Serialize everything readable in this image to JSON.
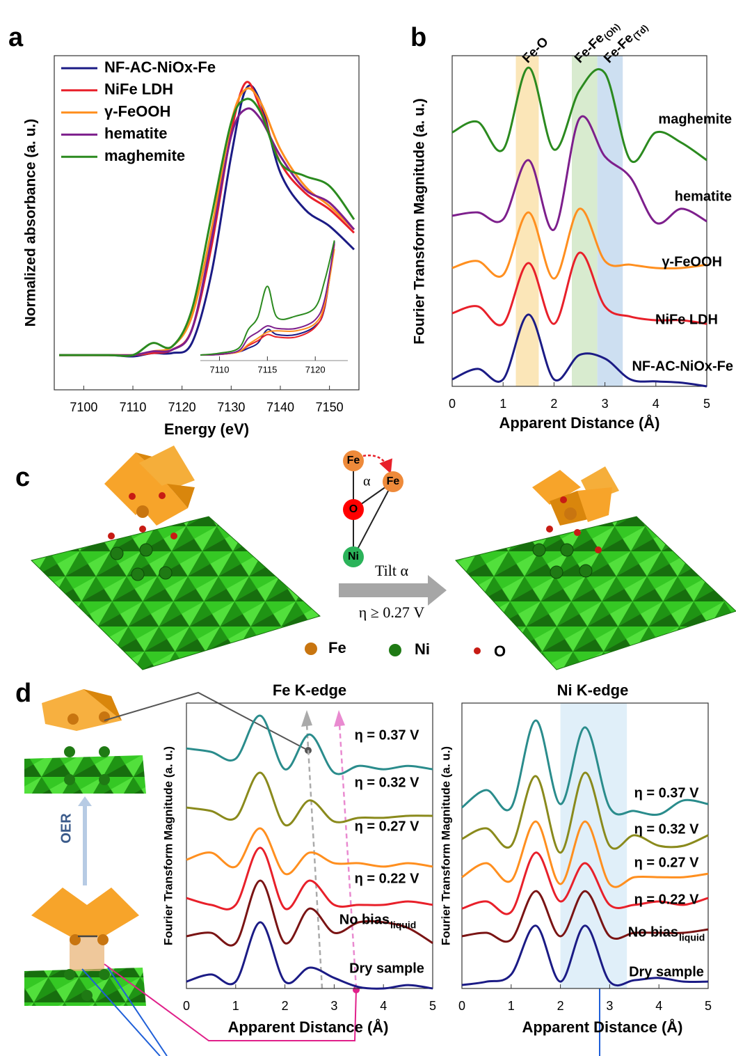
{
  "panel_labels": [
    "a",
    "b",
    "c",
    "d"
  ],
  "chart_data": [
    {
      "type": "line",
      "legend": true,
      "x_label": "Energy (eV)",
      "y_label": "Normalized absorbance (a. u.)",
      "x": [
        7095,
        7105,
        7110,
        7114,
        7118,
        7122,
        7126,
        7130,
        7133,
        7136,
        7140,
        7145,
        7150,
        7155
      ],
      "xlim": [
        7094,
        7156
      ],
      "xticks": [
        7100,
        7110,
        7120,
        7130,
        7140,
        7150
      ],
      "ylim": [
        0,
        10
      ],
      "series": [
        {
          "name": "NF-AC-NiOx-Fe",
          "color": "#1b1b85",
          "values": [
            1.04,
            1.04,
            1.0,
            1.1,
            1.1,
            1.4,
            3.5,
            7.0,
            9.0,
            8.6,
            6.5,
            5.4,
            4.9,
            4.2
          ]
        },
        {
          "name": "NiFe LDH",
          "color": "#e8202a",
          "values": [
            1.04,
            1.04,
            1.04,
            1.1,
            1.2,
            1.8,
            4.3,
            7.7,
            9.2,
            8.4,
            6.8,
            5.9,
            5.4,
            4.7
          ]
        },
        {
          "name": "γ-FeOOH",
          "color": "#ff8f1f",
          "values": [
            1.04,
            1.04,
            1.04,
            1.15,
            1.3,
            2.2,
            4.8,
            8.0,
            9.0,
            8.6,
            7.2,
            6.1,
            5.5,
            4.8
          ]
        },
        {
          "name": "hematite",
          "color": "#7d1f8c",
          "values": [
            1.04,
            1.04,
            1.04,
            1.15,
            1.2,
            1.8,
            4.5,
            7.6,
            8.4,
            8.1,
            7.0,
            6.0,
            5.6,
            4.8
          ]
        },
        {
          "name": "maghemite",
          "color": "#2b8a1f",
          "values": [
            1.04,
            1.04,
            1.04,
            1.4,
            1.3,
            2.4,
            5.2,
            8.0,
            8.7,
            8.3,
            6.8,
            6.4,
            6.1,
            5.1
          ]
        }
      ]
    },
    {
      "type": "line",
      "x": [
        7108,
        7110,
        7112,
        7113,
        7114,
        7115,
        7116,
        7118,
        7120,
        7121,
        7122
      ],
      "xlim": [
        7108,
        7123.4
      ],
      "xticks": [
        7110,
        7115,
        7120
      ],
      "ylim": [
        0,
        10
      ],
      "series": [
        {
          "color": "#1b1b85",
          "values": [
            0.45,
            0.5,
            0.7,
            1.0,
            1.4,
            2.5,
            2.1,
            2.1,
            2.8,
            4.3,
            9.6
          ]
        },
        {
          "color": "#e8202a",
          "values": [
            0.45,
            0.5,
            0.7,
            1.2,
            1.6,
            2.1,
            1.9,
            1.9,
            2.7,
            4.4,
            9.4
          ]
        },
        {
          "color": "#ff8f1f",
          "values": [
            0.45,
            0.5,
            0.7,
            1.3,
            1.8,
            2.3,
            2.4,
            2.4,
            3.0,
            4.6,
            9.0
          ]
        },
        {
          "color": "#7d1f8c",
          "values": [
            0.45,
            0.5,
            0.8,
            1.8,
            2.3,
            2.8,
            2.6,
            2.6,
            3.3,
            5.0,
            9.5
          ]
        },
        {
          "color": "#2b8a1f",
          "values": [
            0.45,
            0.6,
            1.0,
            2.5,
            3.5,
            6.0,
            3.5,
            3.6,
            4.3,
            6.5,
            9.7
          ]
        }
      ]
    },
    {
      "type": "line",
      "x_label": "Apparent Distance (Å)",
      "y_label": "Fourier Transform Magnitude (a. u.)",
      "x": [
        0,
        0.5,
        1,
        1.5,
        2,
        2.5,
        3,
        3.5,
        4,
        4.5,
        5
      ],
      "xlim": [
        0,
        5
      ],
      "xticks": [
        0,
        1,
        2,
        3,
        4,
        5
      ],
      "ylim": [
        0,
        10
      ],
      "bands": [
        {
          "label": "Fe-O",
          "range": [
            1.25,
            1.7
          ],
          "color": "#fbe6b8"
        },
        {
          "label": "Fe-Fe",
          "label_sub": "(Oh)",
          "range": [
            2.35,
            2.85
          ],
          "color": "#d8ebcf"
        },
        {
          "label": "Fe-Fe",
          "label_sub": "(Td)",
          "range": [
            2.85,
            3.35
          ],
          "color": "#cddff1"
        }
      ],
      "series": [
        {
          "name": "maghemite",
          "color": "#2b8a1f",
          "values": [
            7.68,
            8.0,
            7.16,
            9.64,
            7.16,
            8.95,
            9.47,
            6.84,
            7.68,
            7.37,
            6.84
          ]
        },
        {
          "name": "hematite",
          "color": "#7d1f8c",
          "values": [
            5.16,
            5.26,
            5.05,
            6.84,
            4.74,
            8.1,
            6.95,
            6.32,
            4.95,
            5.37,
            4.99
          ]
        },
        {
          "name": "γ-FeOOH",
          "color": "#ff8f1f",
          "values": [
            3.58,
            3.79,
            3.37,
            5.26,
            3.26,
            5.37,
            3.79,
            3.68,
            3.58,
            3.58,
            3.68
          ]
        },
        {
          "name": "NiFe LDH",
          "color": "#e8202a",
          "values": [
            2.21,
            2.42,
            1.89,
            3.73,
            1.89,
            4.04,
            2.42,
            2.11,
            2.0,
            2.0,
            1.89
          ]
        },
        {
          "name": "NF-AC-NiOx-Fe",
          "color": "#1b1b85",
          "values": [
            0.21,
            0.53,
            0.21,
            2.17,
            0.21,
            0.95,
            0.84,
            0.21,
            0.15,
            0.11,
            0.0
          ]
        }
      ]
    },
    {
      "type": "line",
      "title": "Fe K-edge",
      "x_label": "Apparent Distance (Å)",
      "y_label": "Fourier Transform Magnitude (a. u.)",
      "x": [
        0,
        0.5,
        1,
        1.5,
        2,
        2.5,
        3,
        3.5,
        4,
        4.5,
        5
      ],
      "xlim": [
        0,
        5
      ],
      "xticks": [
        0,
        1,
        2,
        3,
        4,
        5
      ],
      "ylim": [
        0,
        10
      ],
      "series": [
        {
          "name": "η = 0.37 V",
          "color": "#2a8c8c",
          "values": [
            8.41,
            8.29,
            8.05,
            9.56,
            7.68,
            8.9,
            7.56,
            7.8,
            7.68,
            7.8,
            7.68
          ]
        },
        {
          "name": "η = 0.32 V",
          "color": "#8a8a1c",
          "values": [
            6.34,
            6.22,
            5.98,
            7.56,
            5.73,
            6.59,
            5.85,
            5.98,
            5.98,
            6.05,
            6.05
          ]
        },
        {
          "name": "η = 0.27 V",
          "color": "#ff8f1f",
          "values": [
            4.51,
            4.76,
            4.27,
            5.61,
            4.02,
            4.76,
            4.39,
            4.39,
            4.27,
            4.39,
            4.27
          ]
        },
        {
          "name": "η = 0.22 V",
          "color": "#e8202a",
          "values": [
            3.17,
            2.93,
            2.93,
            4.93,
            2.8,
            3.78,
            2.93,
            2.93,
            2.93,
            3.05,
            2.93
          ]
        },
        {
          "name": "No bias",
          "name_sub": "liquid",
          "color": "#7a1414",
          "values": [
            1.83,
            1.95,
            1.59,
            3.78,
            1.59,
            2.8,
            1.95,
            2.32,
            2.32,
            2.12,
            1.59
          ]
        },
        {
          "name": "Dry sample",
          "color": "#1b1b85",
          "values": [
            0.24,
            0.49,
            0.24,
            2.32,
            0.24,
            0.73,
            0.37,
            0.05,
            0,
            0.12,
            0
          ]
        }
      ]
    },
    {
      "type": "line",
      "title": "Ni K-edge",
      "x_label": "Apparent Distance (Å)",
      "y_label": "Fourier Transform Magnitude (a. u.)",
      "x": [
        0,
        0.5,
        1,
        1.5,
        2,
        2.5,
        3,
        3.5,
        4,
        4.5,
        5
      ],
      "xlim": [
        0,
        5
      ],
      "xticks": [
        0,
        1,
        2,
        3,
        4,
        5
      ],
      "ylim": [
        0,
        10
      ],
      "bands": [
        {
          "range": [
            2.0,
            3.35
          ],
          "color": "#e0eff9"
        }
      ],
      "series": [
        {
          "name": "η = 0.37 V",
          "color": "#2a8c8c",
          "values": [
            6.34,
            6.95,
            6.34,
            9.39,
            6.46,
            9.15,
            6.34,
            6.22,
            6.1,
            6.59,
            6.46
          ]
        },
        {
          "name": "η = 0.32 V",
          "color": "#8a8a1c",
          "values": [
            5.24,
            5.61,
            5.0,
            7.44,
            4.76,
            7.56,
            5.0,
            5.37,
            5.0,
            5.0,
            5.37
          ]
        },
        {
          "name": "η = 0.27 V",
          "color": "#ff8f1f",
          "values": [
            3.9,
            4.39,
            3.78,
            5.85,
            3.66,
            5.85,
            3.66,
            3.9,
            3.9,
            3.9,
            4.02
          ]
        },
        {
          "name": "η = 0.22 V",
          "color": "#e8202a",
          "values": [
            2.8,
            3.05,
            2.68,
            4.76,
            3.05,
            4.39,
            2.93,
            2.93,
            3.05,
            2.93,
            3.17
          ]
        },
        {
          "name": "No bias",
          "name_sub": "liquid",
          "color": "#7a1414",
          "values": [
            1.83,
            1.95,
            1.71,
            3.41,
            1.83,
            3.41,
            1.83,
            1.95,
            1.95,
            1.95,
            2.07
          ]
        },
        {
          "name": "Dry sample",
          "color": "#1b1b85",
          "values": [
            0.12,
            0.24,
            0.49,
            2.2,
            0.24,
            2.2,
            0.24,
            0.29,
            0.37,
            0.24,
            0.24
          ]
        }
      ]
    }
  ],
  "diagram_c": {
    "atoms": [
      "Fe",
      "Fe",
      "O",
      "Ni"
    ],
    "angle": "α",
    "arrow_top": "Tilt α",
    "arrow_bottom": "η ≥ 0.27 V",
    "legend": [
      "Fe",
      "Ni",
      "O"
    ]
  },
  "diagram_d": {
    "arrow_label": "OER"
  }
}
